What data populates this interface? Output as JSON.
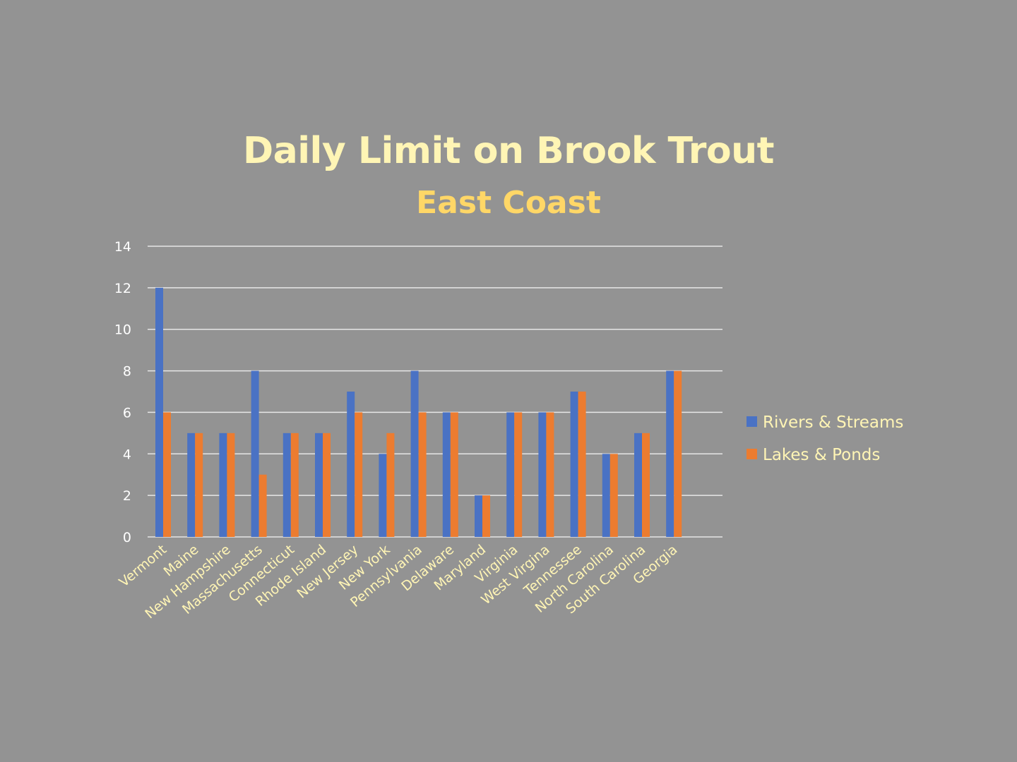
{
  "colors": {
    "background": "#939393",
    "title": "#fff5b5",
    "subtitle": "#ffd767",
    "tick_label": "#ffffff",
    "category_label": "#fff5b5",
    "gridline": "#e6e6e6",
    "rivers": "#4a72c4",
    "lakes": "#ec7c30"
  },
  "chart_data": {
    "type": "bar",
    "title": "Daily Limit on Brook Trout",
    "subtitle": "East Coast",
    "xlabel": "",
    "ylabel": "",
    "ylim": [
      0,
      14
    ],
    "yticks": [
      "0",
      "2",
      "4",
      "6",
      "8",
      "10",
      "12",
      "14"
    ],
    "grid": true,
    "legend_position": "right",
    "categories": [
      "Vermont",
      "Maine",
      "New Hampshire",
      "Massachusetts",
      "Connecticut",
      "Rhode Island",
      "New Jersey",
      "New York",
      "Pennsylvania",
      "Delaware",
      "Maryland",
      "Virginia",
      "West Virgina",
      "Tennessee",
      "North Carolina",
      "South Carolina",
      "Georgia"
    ],
    "series": [
      {
        "name": "Rivers & Streams",
        "color": "#4a72c4",
        "values": [
          12,
          5,
          5,
          8,
          5,
          5,
          7,
          4,
          8,
          6,
          2,
          6,
          6,
          7,
          4,
          5,
          8
        ]
      },
      {
        "name": "Lakes & Ponds",
        "color": "#ec7c30",
        "values": [
          6,
          5,
          5,
          3,
          5,
          5,
          6,
          5,
          6,
          6,
          2,
          6,
          6,
          7,
          4,
          5,
          8
        ]
      }
    ]
  }
}
